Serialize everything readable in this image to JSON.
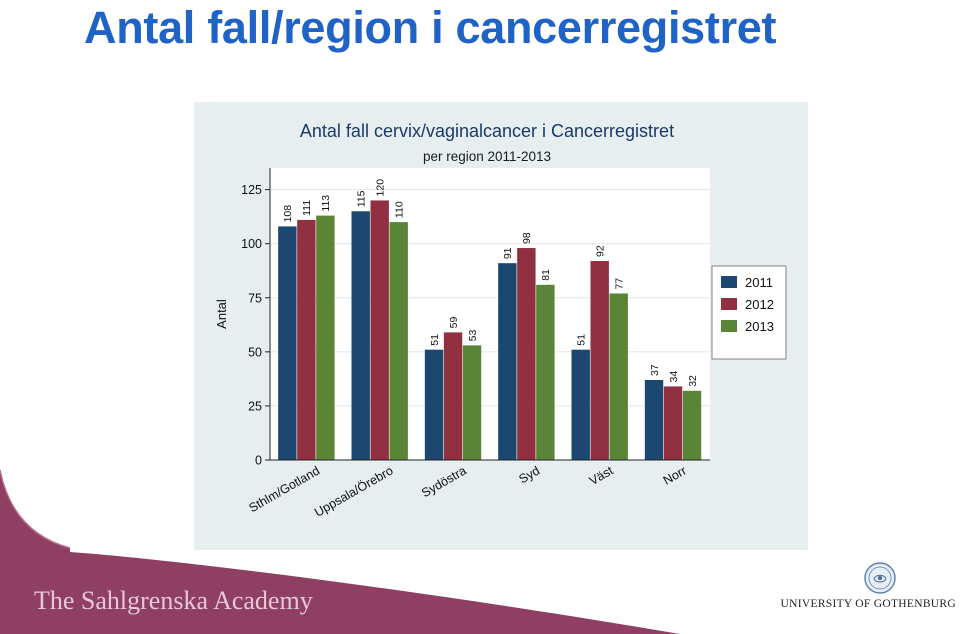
{
  "slide": {
    "title": "Antal fall/region i cancerregistret",
    "footer_left": "The Sahlgrenska Academy",
    "footer_right": "UNIVERSITY OF GOTHENBURG"
  },
  "colors": {
    "title": "#1f63c6",
    "panel_bg": "#e6eef0",
    "footer_wave": "#8e3f62",
    "series_2011": "#1b4770",
    "series_2012": "#913040",
    "series_2013": "#5a8536"
  },
  "chart_data": {
    "type": "bar",
    "title": "Antal fall cervix/vaginalcancer i Cancerregistret",
    "subtitle": "per region 2011-2013",
    "xlabel": "",
    "ylabel": "Antal",
    "ylim": [
      0,
      135
    ],
    "yticks": [
      0,
      25,
      50,
      75,
      100,
      125
    ],
    "grid": true,
    "legend_position": "right",
    "categories": [
      "Sthlm/Gotland",
      "Uppsala/Örebro",
      "Sydöstra",
      "Syd",
      "Väst",
      "Norr"
    ],
    "series": [
      {
        "name": "2011",
        "color": "#1b4770",
        "values": [
          108,
          115,
          51,
          91,
          51,
          37
        ]
      },
      {
        "name": "2012",
        "color": "#913040",
        "values": [
          111,
          120,
          59,
          98,
          92,
          34
        ]
      },
      {
        "name": "2013",
        "color": "#5a8536",
        "values": [
          113,
          110,
          53,
          81,
          77,
          32
        ]
      }
    ]
  }
}
